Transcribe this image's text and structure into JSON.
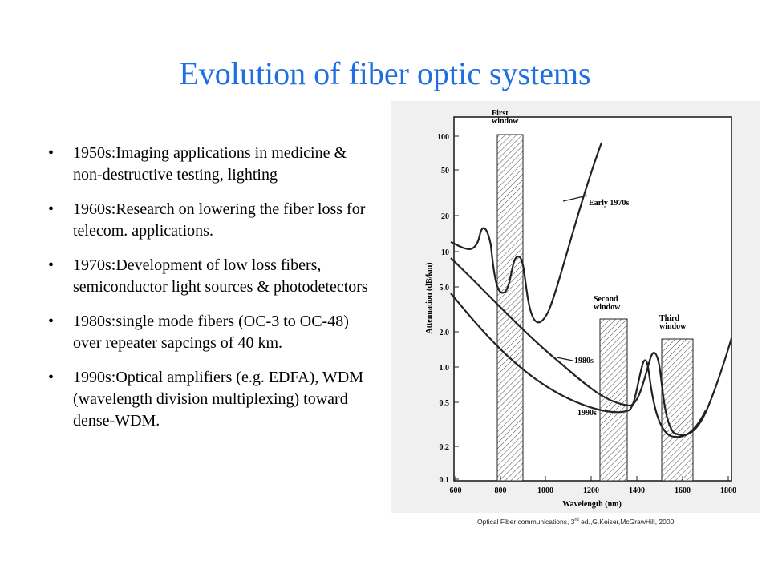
{
  "slide": {
    "title": "Evolution of fiber optic systems",
    "bullets": [
      "1950s:Imaging applications in medicine & non-destructive testing, lighting",
      "1960s:Research on lowering the fiber loss for telecom. applications.",
      "1970s:Development of low loss fibers, semiconductor light sources & photodetectors",
      "1980s:single mode fibers (OC-3 to OC-48) over repeater sapcings of 40 km.",
      "1990s:Optical amplifiers (e.g. EDFA), WDM (wavelength division multiplexing) toward dense-WDM."
    ],
    "bullet_symbol": "•",
    "caption": {
      "before_sup": "Optical Fiber communications, 3",
      "sup": "rd",
      "after_sup": " ed.,G.Keiser,McGrawHill, 2000"
    }
  },
  "figure": {
    "xlabel": "Wavelength (nm)",
    "ylabel": "Attenuation (dB/km)",
    "x_ticks": [
      "600",
      "800",
      "1000",
      "1200",
      "1400",
      "1600",
      "1800"
    ],
    "y_ticks": [
      "100",
      "50",
      "20",
      "10",
      "5.0",
      "2.0",
      "1.0",
      "0.5",
      "0.2",
      "0.1"
    ],
    "windows": [
      {
        "line1": "First",
        "line2": "window"
      },
      {
        "line1": "Second",
        "line2": "window"
      },
      {
        "line1": "Third",
        "line2": "window"
      }
    ],
    "curve_labels": {
      "early": "Early 1970s",
      "eighties": "1980s",
      "nineties": "1990s"
    }
  },
  "colors": {
    "title": "#1f6fe0",
    "figure_bg": "#f0f0f0"
  }
}
